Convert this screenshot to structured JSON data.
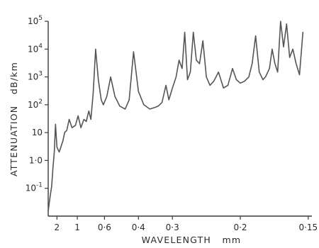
{
  "chart_data": {
    "type": "line",
    "title": "",
    "xlabel": "WAVELENGTH   mm",
    "ylabel": "ATTENUATION   dB/km",
    "xscale": "reciprocal",
    "yscale": "log",
    "grid": false,
    "xlim": [
      3.5,
      0.148
    ],
    "ylim": [
      0.01,
      100000
    ],
    "x_ticks": [
      {
        "value": 2,
        "label": "2"
      },
      {
        "value": 1,
        "label": "1"
      },
      {
        "value": 0.6,
        "label": "0·6"
      },
      {
        "value": 0.4,
        "label": "0·4"
      },
      {
        "value": 0.3,
        "label": "0·3"
      },
      {
        "value": 0.2,
        "label": "0·2"
      },
      {
        "value": 0.15,
        "label": "0·15"
      }
    ],
    "y_ticks": [
      {
        "value": 0.1,
        "label": "10",
        "exp": "-1"
      },
      {
        "value": 1,
        "label": "1·0",
        "exp": ""
      },
      {
        "value": 10,
        "label": "10",
        "exp": ""
      },
      {
        "value": 100,
        "label": "10",
        "exp": "2"
      },
      {
        "value": 1000,
        "label": "10",
        "exp": "3"
      },
      {
        "value": 10000,
        "label": "10",
        "exp": "4"
      },
      {
        "value": 100000,
        "label": "10",
        "exp": "5"
      }
    ],
    "series": [
      {
        "x": [
          3.5,
          3.2,
          3.0,
          2.7,
          2.5,
          2.3,
          2.15,
          2.0,
          1.8,
          1.55,
          1.45,
          1.35,
          1.25,
          1.15,
          1.05,
          0.98,
          0.92,
          0.86,
          0.82,
          0.78,
          0.75,
          0.72,
          0.69,
          0.66,
          0.63,
          0.61,
          0.58,
          0.55,
          0.52,
          0.49,
          0.46,
          0.44,
          0.42,
          0.4,
          0.38,
          0.36,
          0.345,
          0.335,
          0.325,
          0.315,
          0.308,
          0.3,
          0.292,
          0.286,
          0.28,
          0.275,
          0.27,
          0.265,
          0.26,
          0.255,
          0.25,
          0.245,
          0.24,
          0.235,
          0.23,
          0.224,
          0.218,
          0.213,
          0.208,
          0.204,
          0.2,
          0.196,
          0.192,
          0.189,
          0.186,
          0.183,
          0.18,
          0.178,
          0.175,
          0.173,
          0.171,
          0.169,
          0.167,
          0.165,
          0.163,
          0.161,
          0.159,
          0.157,
          0.155,
          0.153
        ],
        "y": [
          0.015,
          0.03,
          0.05,
          0.12,
          0.5,
          2,
          20,
          3,
          2,
          5,
          10,
          12,
          30,
          15,
          18,
          40,
          15,
          30,
          25,
          60,
          30,
          250,
          10000,
          800,
          150,
          100,
          200,
          1000,
          200,
          90,
          70,
          150,
          8000,
          300,
          100,
          70,
          80,
          90,
          120,
          500,
          150,
          400,
          1000,
          4000,
          2000,
          40000,
          800,
          1500,
          40000,
          4000,
          3000,
          20000,
          1000,
          500,
          700,
          1500,
          400,
          500,
          2000,
          800,
          600,
          700,
          1000,
          3000,
          30000,
          1500,
          800,
          1000,
          2000,
          10000,
          3000,
          1500,
          100000,
          12000,
          80000,
          5000,
          10000,
          3000,
          1200,
          40000
        ]
      }
    ]
  }
}
